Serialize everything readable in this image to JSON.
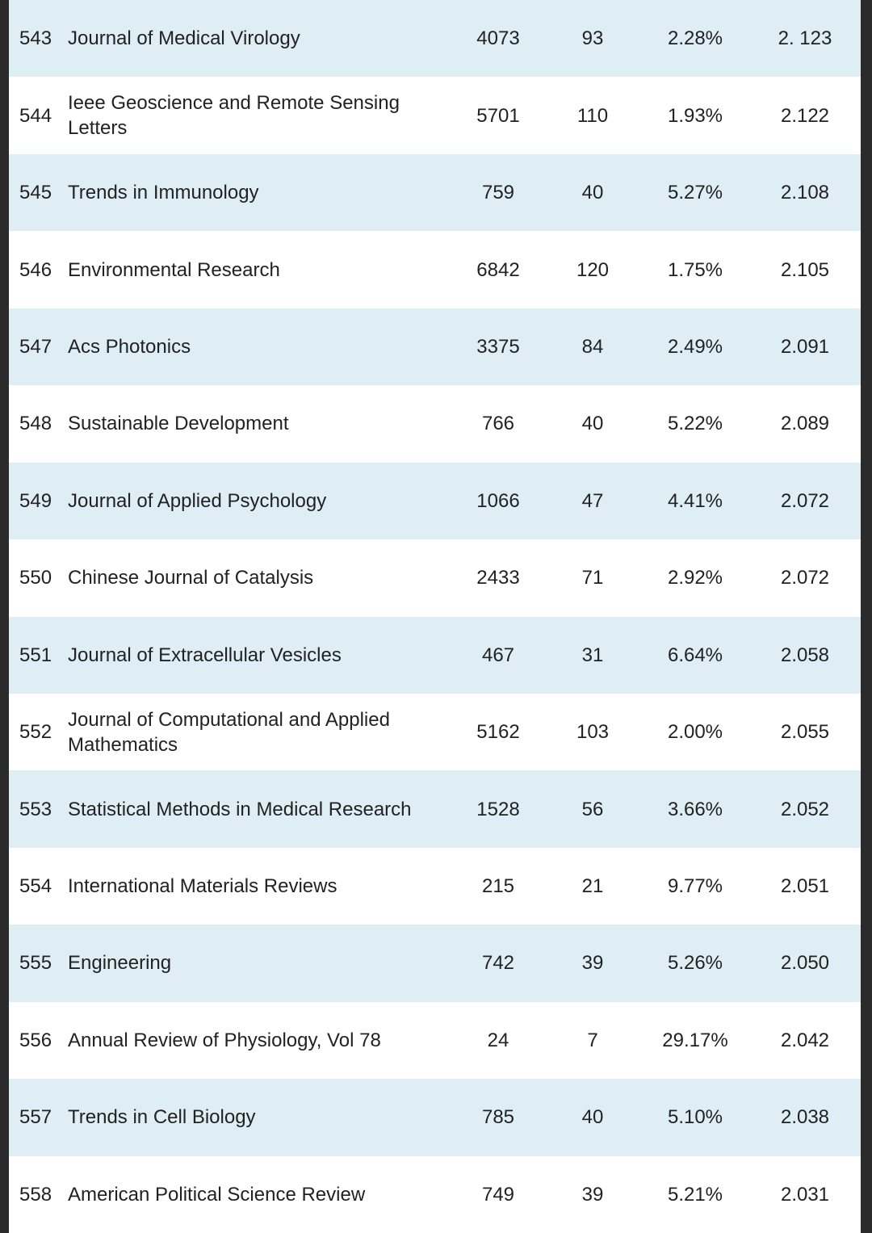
{
  "table": {
    "rows": [
      [
        "543",
        "Journal of Medical Virology",
        "4073",
        "93",
        "2.28%",
        "2. 123"
      ],
      [
        "544",
        "Ieee Geoscience and Remote Sensing Letters",
        "5701",
        "110",
        "1.93%",
        "2.122"
      ],
      [
        "545",
        "Trends in Immunology",
        "759",
        "40",
        "5.27%",
        "2.108"
      ],
      [
        "546",
        "Environmental Research",
        "6842",
        "120",
        "1.75%",
        "2.105"
      ],
      [
        "547",
        "Acs Photonics",
        "3375",
        "84",
        "2.49%",
        "2.091"
      ],
      [
        "548",
        "Sustainable Development",
        "766",
        "40",
        "5.22%",
        "2.089"
      ],
      [
        "549",
        "Journal of Applied Psychology",
        "1066",
        "47",
        "4.41%",
        "2.072"
      ],
      [
        "550",
        "Chinese Journal of Catalysis",
        "2433",
        "71",
        "2.92%",
        "2.072"
      ],
      [
        "551",
        "Journal of Extracellular Vesicles",
        "467",
        "31",
        "6.64%",
        "2.058"
      ],
      [
        "552",
        "Journal of Computational and Applied Mathematics",
        "5162",
        "103",
        "2.00%",
        "2.055"
      ],
      [
        "553",
        "Statistical Methods in Medical Research",
        "1528",
        "56",
        "3.66%",
        "2.052"
      ],
      [
        "554",
        "International Materials Reviews",
        "215",
        "21",
        "9.77%",
        "2.051"
      ],
      [
        "555",
        "Engineering",
        "742",
        "39",
        "5.26%",
        "2.050"
      ],
      [
        "556",
        "Annual Review of Physiology, Vol 78",
        "24",
        "7",
        "29.17%",
        "2.042"
      ],
      [
        "557",
        "Trends in Cell Biology",
        "785",
        "40",
        "5.10%",
        "2.038"
      ],
      [
        "558",
        "American Political Science Review",
        "749",
        "39",
        "5.21%",
        "2.031"
      ]
    ]
  }
}
